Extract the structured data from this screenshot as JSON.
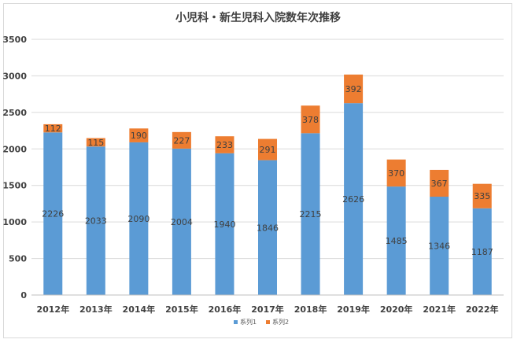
{
  "chart_data": {
    "type": "bar",
    "stacked": true,
    "title": "小児科・新生児科入院数年次推移",
    "categories": [
      "2012年",
      "2013年",
      "2014年",
      "2015年",
      "2016年",
      "2017年",
      "2018年",
      "2019年",
      "2020年",
      "2021年",
      "2022年"
    ],
    "series": [
      {
        "name": "系列1",
        "color": "#5b9bd5",
        "values": [
          2226,
          2033,
          2090,
          2004,
          1940,
          1846,
          2215,
          2626,
          1485,
          1346,
          1187
        ]
      },
      {
        "name": "系列2",
        "color": "#ed7d31",
        "values": [
          112,
          115,
          190,
          227,
          233,
          291,
          378,
          392,
          370,
          367,
          335
        ]
      }
    ],
    "yticks": [
      "0",
      "500",
      "1000",
      "1500",
      "2000",
      "2500",
      "3000",
      "3500"
    ],
    "ylim": [
      0,
      3500
    ],
    "grid": true,
    "legend_position": "bottom"
  }
}
